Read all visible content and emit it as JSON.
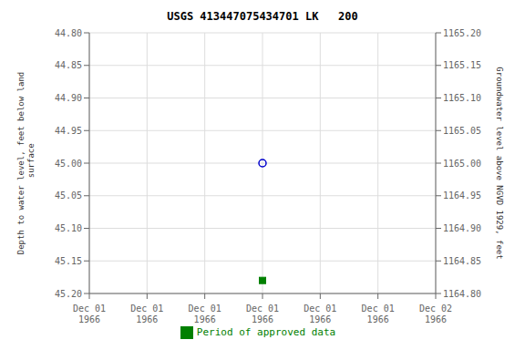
{
  "chart_data": {
    "type": "scatter",
    "title": "USGS 413447075434701 LK   200",
    "y_label": "Depth to water level, feet below land\n surface",
    "y2_label": "Groundwater level above NGVD 1929, feet",
    "categories": [
      "Dec 01\n1966",
      "Dec 01\n1966",
      "Dec 01\n1966",
      "Dec 01\n1966",
      "Dec 01\n1966",
      "Dec 01\n1966",
      "Dec 02\n1966"
    ],
    "series": [
      {
        "values": [
          null,
          null,
          null,
          45.0,
          null,
          null,
          null
        ],
        "color": "#0000cc",
        "marker": "circle"
      },
      {
        "name": "Period of approved data",
        "values": [
          null,
          null,
          null,
          45.18,
          null,
          null,
          null
        ],
        "color": "#008000",
        "marker": "square"
      }
    ],
    "ylim": [
      45.2,
      44.8
    ],
    "yticks": [
      {
        "value": 44.8,
        "label": "44.80"
      },
      44.85,
      {
        "value": 44.9,
        "label": "44.90"
      },
      44.95,
      {
        "value": 45.0,
        "label": "45.00"
      },
      45.05,
      {
        "value": 45.1,
        "label": "45.10"
      },
      45.15,
      {
        "value": 45.2,
        "label": "45.20"
      }
    ],
    "y2lim": [
      1164.8,
      1165.2
    ],
    "y2ticks": [
      {
        "value": 1165.2,
        "label": "1165.20"
      },
      1165.15,
      {
        "value": 1165.1,
        "label": "1165.10"
      },
      1165.05,
      {
        "value": 1165.0,
        "label": "1165.00"
      },
      1164.95,
      {
        "value": 1164.9,
        "label": "1164.90"
      },
      1164.85,
      {
        "value": 1164.8,
        "label": "1164.80"
      }
    ],
    "grid": true,
    "legend": "bottom"
  }
}
